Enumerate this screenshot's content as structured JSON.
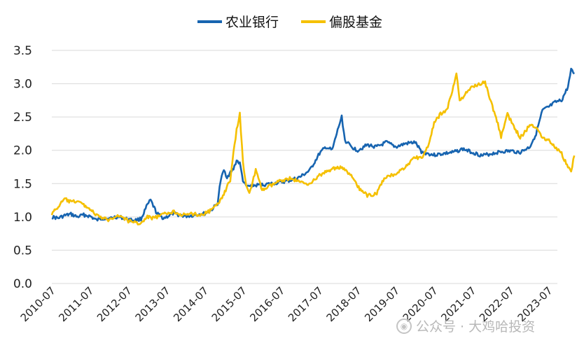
{
  "chart_data": {
    "type": "line",
    "title": "",
    "xlabel": "",
    "ylabel": "",
    "ylim": [
      0,
      3.5
    ],
    "yticks": [
      "0.0",
      "0.5",
      "1.0",
      "1.5",
      "2.0",
      "2.5",
      "3.0",
      "3.5"
    ],
    "xticks": [
      "2010-07",
      "2011-07",
      "2012-07",
      "2013-07",
      "2014-07",
      "2015-07",
      "2016-07",
      "2017-07",
      "2018-07",
      "2019-07",
      "2020-07",
      "2021-07",
      "2022-07",
      "2023-07"
    ],
    "grid": "horizontal",
    "legend_position": "top",
    "colors": {
      "series1": "#1764b0",
      "series2": "#f5c000",
      "grid": "#d9d9d9"
    },
    "series": [
      {
        "name": "农业银行",
        "points": [
          [
            "2010-07",
            1.0
          ],
          [
            "2010-09",
            0.98
          ],
          [
            "2010-11",
            1.02
          ],
          [
            "2011-01",
            1.04
          ],
          [
            "2011-03",
            1.0
          ],
          [
            "2011-05",
            1.03
          ],
          [
            "2011-07",
            1.01
          ],
          [
            "2011-09",
            0.95
          ],
          [
            "2011-11",
            0.98
          ],
          [
            "2012-01",
            0.97
          ],
          [
            "2012-03",
            1.0
          ],
          [
            "2012-05",
            0.99
          ],
          [
            "2012-07",
            0.96
          ],
          [
            "2012-09",
            0.95
          ],
          [
            "2012-11",
            0.97
          ],
          [
            "2013-01",
            1.18
          ],
          [
            "2013-02",
            1.25
          ],
          [
            "2013-04",
            1.05
          ],
          [
            "2013-06",
            0.98
          ],
          [
            "2013-07",
            1.0
          ],
          [
            "2013-09",
            1.05
          ],
          [
            "2013-11",
            1.03
          ],
          [
            "2014-01",
            1.01
          ],
          [
            "2014-03",
            1.02
          ],
          [
            "2014-05",
            1.04
          ],
          [
            "2014-07",
            1.05
          ],
          [
            "2014-09",
            1.1
          ],
          [
            "2014-11",
            1.2
          ],
          [
            "2014-12",
            1.55
          ],
          [
            "2015-01",
            1.7
          ],
          [
            "2015-02",
            1.6
          ],
          [
            "2015-04",
            1.72
          ],
          [
            "2015-05",
            1.85
          ],
          [
            "2015-06",
            1.8
          ],
          [
            "2015-07",
            1.55
          ],
          [
            "2015-08",
            1.45
          ],
          [
            "2015-10",
            1.47
          ],
          [
            "2016-01",
            1.48
          ],
          [
            "2016-04",
            1.5
          ],
          [
            "2016-07",
            1.52
          ],
          [
            "2016-10",
            1.55
          ],
          [
            "2017-01",
            1.6
          ],
          [
            "2017-04",
            1.7
          ],
          [
            "2017-07",
            1.95
          ],
          [
            "2017-09",
            2.05
          ],
          [
            "2017-11",
            2.0
          ],
          [
            "2018-01",
            2.35
          ],
          [
            "2018-02",
            2.5
          ],
          [
            "2018-03",
            2.15
          ],
          [
            "2018-05",
            2.05
          ],
          [
            "2018-07",
            2.0
          ],
          [
            "2018-10",
            2.08
          ],
          [
            "2019-01",
            2.05
          ],
          [
            "2019-04",
            2.12
          ],
          [
            "2019-07",
            2.05
          ],
          [
            "2019-10",
            2.1
          ],
          [
            "2020-01",
            2.12
          ],
          [
            "2020-03",
            1.98
          ],
          [
            "2020-05",
            1.95
          ],
          [
            "2020-07",
            1.93
          ],
          [
            "2020-10",
            1.95
          ],
          [
            "2021-01",
            1.97
          ],
          [
            "2021-04",
            2.02
          ],
          [
            "2021-07",
            1.97
          ],
          [
            "2021-10",
            1.92
          ],
          [
            "2022-01",
            1.95
          ],
          [
            "2022-04",
            1.98
          ],
          [
            "2022-07",
            1.99
          ],
          [
            "2022-10",
            1.97
          ],
          [
            "2023-01",
            2.05
          ],
          [
            "2023-03",
            2.25
          ],
          [
            "2023-05",
            2.6
          ],
          [
            "2023-07",
            2.65
          ],
          [
            "2023-09",
            2.72
          ],
          [
            "2023-11",
            2.75
          ],
          [
            "2024-01",
            2.95
          ],
          [
            "2024-02",
            3.2
          ],
          [
            "2024-03",
            3.15
          ]
        ]
      },
      {
        "name": "偏股基金",
        "points": [
          [
            "2010-07",
            1.05
          ],
          [
            "2010-09",
            1.15
          ],
          [
            "2010-11",
            1.27
          ],
          [
            "2011-01",
            1.22
          ],
          [
            "2011-03",
            1.24
          ],
          [
            "2011-05",
            1.18
          ],
          [
            "2011-07",
            1.12
          ],
          [
            "2011-09",
            1.02
          ],
          [
            "2011-11",
            0.98
          ],
          [
            "2012-01",
            0.95
          ],
          [
            "2012-03",
            1.02
          ],
          [
            "2012-05",
            1.0
          ],
          [
            "2012-07",
            0.94
          ],
          [
            "2012-09",
            0.92
          ],
          [
            "2012-11",
            0.9
          ],
          [
            "2013-01",
            1.0
          ],
          [
            "2013-03",
            0.98
          ],
          [
            "2013-05",
            1.02
          ],
          [
            "2013-07",
            1.05
          ],
          [
            "2013-09",
            1.08
          ],
          [
            "2013-11",
            1.05
          ],
          [
            "2014-01",
            1.02
          ],
          [
            "2014-03",
            1.05
          ],
          [
            "2014-05",
            1.03
          ],
          [
            "2014-07",
            1.05
          ],
          [
            "2014-09",
            1.1
          ],
          [
            "2014-11",
            1.18
          ],
          [
            "2015-01",
            1.35
          ],
          [
            "2015-03",
            1.55
          ],
          [
            "2015-04",
            1.95
          ],
          [
            "2015-05",
            2.3
          ],
          [
            "2015-06",
            2.55
          ],
          [
            "2015-07",
            1.8
          ],
          [
            "2015-08",
            1.5
          ],
          [
            "2015-09",
            1.35
          ],
          [
            "2015-11",
            1.7
          ],
          [
            "2016-01",
            1.4
          ],
          [
            "2016-03",
            1.45
          ],
          [
            "2016-05",
            1.5
          ],
          [
            "2016-07",
            1.55
          ],
          [
            "2016-10",
            1.58
          ],
          [
            "2017-01",
            1.52
          ],
          [
            "2017-04",
            1.5
          ],
          [
            "2017-07",
            1.62
          ],
          [
            "2017-10",
            1.7
          ],
          [
            "2018-01",
            1.75
          ],
          [
            "2018-03",
            1.7
          ],
          [
            "2018-05",
            1.62
          ],
          [
            "2018-07",
            1.45
          ],
          [
            "2018-10",
            1.32
          ],
          [
            "2019-01",
            1.35
          ],
          [
            "2019-03",
            1.55
          ],
          [
            "2019-05",
            1.62
          ],
          [
            "2019-07",
            1.65
          ],
          [
            "2019-10",
            1.75
          ],
          [
            "2020-01",
            1.9
          ],
          [
            "2020-03",
            1.88
          ],
          [
            "2020-05",
            2.05
          ],
          [
            "2020-07",
            2.4
          ],
          [
            "2020-09",
            2.55
          ],
          [
            "2020-11",
            2.6
          ],
          [
            "2021-01",
            2.95
          ],
          [
            "2021-02",
            3.15
          ],
          [
            "2021-03",
            2.75
          ],
          [
            "2021-05",
            2.85
          ],
          [
            "2021-07",
            2.95
          ],
          [
            "2021-09",
            3.0
          ],
          [
            "2021-11",
            3.02
          ],
          [
            "2022-01",
            2.7
          ],
          [
            "2022-03",
            2.4
          ],
          [
            "2022-04",
            2.2
          ],
          [
            "2022-06",
            2.55
          ],
          [
            "2022-08",
            2.35
          ],
          [
            "2022-10",
            2.2
          ],
          [
            "2022-12",
            2.3
          ],
          [
            "2023-01",
            2.4
          ],
          [
            "2023-03",
            2.35
          ],
          [
            "2023-05",
            2.2
          ],
          [
            "2023-07",
            2.15
          ],
          [
            "2023-09",
            2.05
          ],
          [
            "2023-11",
            1.95
          ],
          [
            "2024-01",
            1.75
          ],
          [
            "2024-02",
            1.7
          ],
          [
            "2024-03",
            1.92
          ]
        ]
      }
    ]
  },
  "watermark": {
    "icon": "wechat-icon",
    "text": "公众号 · 大鸡哈投资"
  }
}
